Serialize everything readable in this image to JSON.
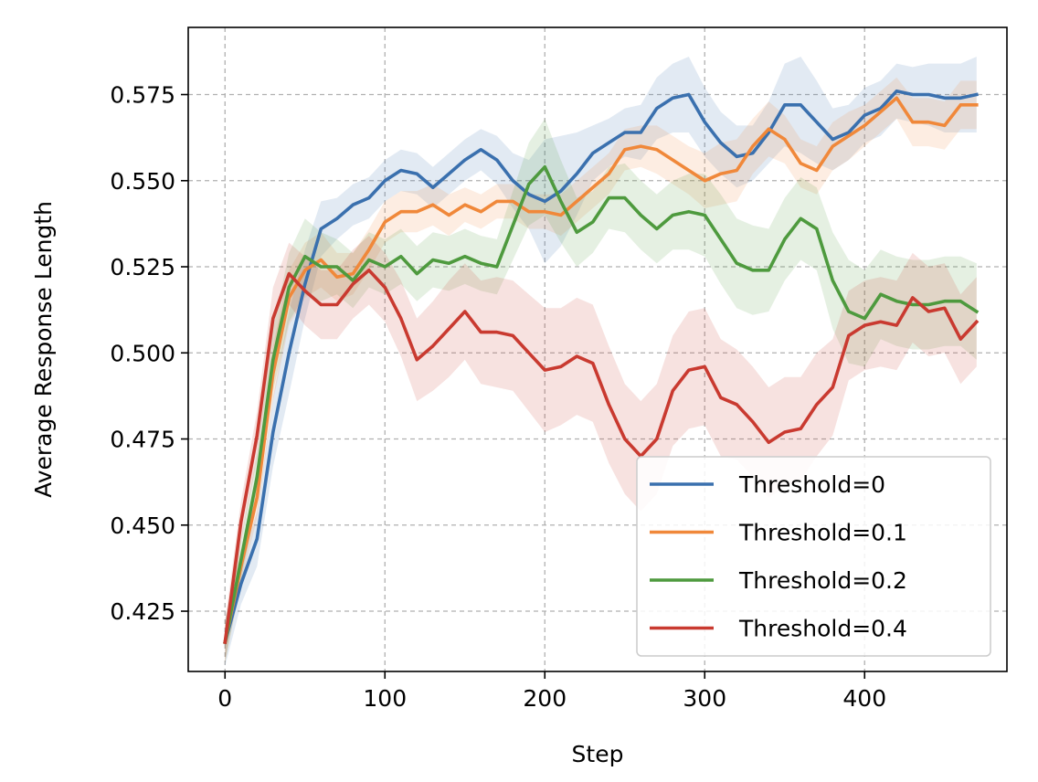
{
  "chart_data": {
    "type": "line",
    "title": "",
    "xlabel": "Step",
    "ylabel": "Average Response Length",
    "xlim": [
      -23,
      489
    ],
    "ylim": [
      0.4075,
      0.5945
    ],
    "xticks": [
      0,
      100,
      200,
      300,
      400
    ],
    "xtick_labels": [
      "0",
      "100",
      "200",
      "300",
      "400"
    ],
    "yticks": [
      0.425,
      0.45,
      0.475,
      0.5,
      0.525,
      0.55,
      0.575
    ],
    "ytick_labels": [
      "0.425",
      "0.450",
      "0.475",
      "0.500",
      "0.525",
      "0.550",
      "0.575"
    ],
    "grid": true,
    "grid_style": "dashed",
    "legend_position": "bottom-right",
    "shaded_band": "variability band around each series",
    "x": [
      0,
      10,
      20,
      30,
      40,
      50,
      60,
      70,
      80,
      90,
      100,
      110,
      120,
      130,
      140,
      150,
      160,
      170,
      180,
      190,
      200,
      210,
      220,
      230,
      240,
      250,
      260,
      270,
      280,
      290,
      300,
      310,
      320,
      330,
      340,
      350,
      360,
      370,
      380,
      390,
      400,
      410,
      420,
      430,
      440,
      450,
      460,
      470
    ],
    "series": [
      {
        "name": "Threshold=0",
        "color": "#3a70ae",
        "values": [
          0.416,
          0.433,
          0.446,
          0.477,
          0.5,
          0.52,
          0.536,
          0.539,
          0.543,
          0.545,
          0.55,
          0.553,
          0.552,
          0.548,
          0.552,
          0.556,
          0.559,
          0.556,
          0.55,
          0.546,
          0.544,
          0.547,
          0.552,
          0.558,
          0.561,
          0.564,
          0.564,
          0.571,
          0.574,
          0.575,
          0.567,
          0.561,
          0.557,
          0.558,
          0.564,
          0.572,
          0.572,
          0.567,
          0.562,
          0.564,
          0.569,
          0.571,
          0.576,
          0.575,
          0.575,
          0.574,
          0.574,
          0.575
        ],
        "band": [
          0.007,
          0.006,
          0.008,
          0.01,
          0.012,
          0.01,
          0.008,
          0.006,
          0.006,
          0.006,
          0.006,
          0.006,
          0.006,
          0.006,
          0.006,
          0.006,
          0.006,
          0.007,
          0.008,
          0.01,
          0.018,
          0.016,
          0.012,
          0.008,
          0.007,
          0.007,
          0.008,
          0.009,
          0.01,
          0.011,
          0.01,
          0.009,
          0.009,
          0.008,
          0.009,
          0.012,
          0.014,
          0.012,
          0.009,
          0.008,
          0.008,
          0.008,
          0.008,
          0.008,
          0.009,
          0.01,
          0.01,
          0.011
        ]
      },
      {
        "name": "Threshold=0.1",
        "color": "#f0883a",
        "values": [
          0.416,
          0.438,
          0.458,
          0.494,
          0.516,
          0.524,
          0.527,
          0.522,
          0.523,
          0.53,
          0.538,
          0.541,
          0.541,
          0.543,
          0.54,
          0.543,
          0.541,
          0.544,
          0.544,
          0.541,
          0.541,
          0.54,
          0.544,
          0.548,
          0.552,
          0.559,
          0.56,
          0.559,
          0.556,
          0.553,
          0.55,
          0.552,
          0.553,
          0.56,
          0.565,
          0.562,
          0.555,
          0.553,
          0.56,
          0.563,
          0.566,
          0.57,
          0.574,
          0.567,
          0.567,
          0.566,
          0.572,
          0.572
        ],
        "band": [
          0.006,
          0.005,
          0.006,
          0.008,
          0.008,
          0.008,
          0.008,
          0.007,
          0.006,
          0.006,
          0.006,
          0.006,
          0.006,
          0.006,
          0.006,
          0.005,
          0.005,
          0.005,
          0.005,
          0.005,
          0.005,
          0.006,
          0.006,
          0.006,
          0.006,
          0.006,
          0.006,
          0.007,
          0.007,
          0.007,
          0.008,
          0.009,
          0.009,
          0.008,
          0.008,
          0.007,
          0.007,
          0.007,
          0.007,
          0.007,
          0.006,
          0.006,
          0.006,
          0.007,
          0.007,
          0.007,
          0.007,
          0.007
        ]
      },
      {
        "name": "Threshold=0.2",
        "color": "#4e9a3e",
        "values": [
          0.416,
          0.44,
          0.464,
          0.498,
          0.519,
          0.528,
          0.525,
          0.525,
          0.521,
          0.527,
          0.525,
          0.528,
          0.523,
          0.527,
          0.526,
          0.528,
          0.526,
          0.525,
          0.537,
          0.549,
          0.554,
          0.544,
          0.535,
          0.538,
          0.545,
          0.545,
          0.54,
          0.536,
          0.54,
          0.541,
          0.54,
          0.533,
          0.526,
          0.524,
          0.524,
          0.533,
          0.539,
          0.536,
          0.521,
          0.512,
          0.51,
          0.517,
          0.515,
          0.514,
          0.514,
          0.515,
          0.515,
          0.512
        ],
        "band": [
          0.006,
          0.006,
          0.007,
          0.009,
          0.01,
          0.011,
          0.01,
          0.008,
          0.008,
          0.008,
          0.008,
          0.008,
          0.008,
          0.008,
          0.008,
          0.008,
          0.008,
          0.008,
          0.01,
          0.012,
          0.014,
          0.012,
          0.01,
          0.009,
          0.009,
          0.01,
          0.01,
          0.01,
          0.01,
          0.011,
          0.012,
          0.013,
          0.013,
          0.013,
          0.012,
          0.012,
          0.012,
          0.012,
          0.014,
          0.015,
          0.014,
          0.013,
          0.013,
          0.013,
          0.013,
          0.013,
          0.013,
          0.014
        ]
      },
      {
        "name": "Threshold=0.4",
        "color": "#c93a30",
        "values": [
          0.416,
          0.451,
          0.476,
          0.51,
          0.523,
          0.518,
          0.514,
          0.514,
          0.52,
          0.524,
          0.519,
          0.51,
          0.498,
          0.502,
          0.507,
          0.512,
          0.506,
          0.506,
          0.505,
          0.5,
          0.495,
          0.496,
          0.499,
          0.497,
          0.485,
          0.475,
          0.47,
          0.475,
          0.489,
          0.495,
          0.496,
          0.487,
          0.485,
          0.48,
          0.474,
          0.477,
          0.478,
          0.485,
          0.49,
          0.505,
          0.508,
          0.509,
          0.508,
          0.516,
          0.512,
          0.513,
          0.504,
          0.509
        ],
        "band": [
          0.006,
          0.006,
          0.007,
          0.009,
          0.009,
          0.01,
          0.01,
          0.01,
          0.01,
          0.01,
          0.01,
          0.011,
          0.012,
          0.013,
          0.014,
          0.014,
          0.015,
          0.016,
          0.016,
          0.017,
          0.018,
          0.017,
          0.017,
          0.017,
          0.017,
          0.016,
          0.016,
          0.016,
          0.016,
          0.017,
          0.017,
          0.017,
          0.016,
          0.016,
          0.016,
          0.016,
          0.015,
          0.015,
          0.014,
          0.013,
          0.013,
          0.013,
          0.013,
          0.013,
          0.013,
          0.013,
          0.013,
          0.013
        ]
      }
    ]
  }
}
